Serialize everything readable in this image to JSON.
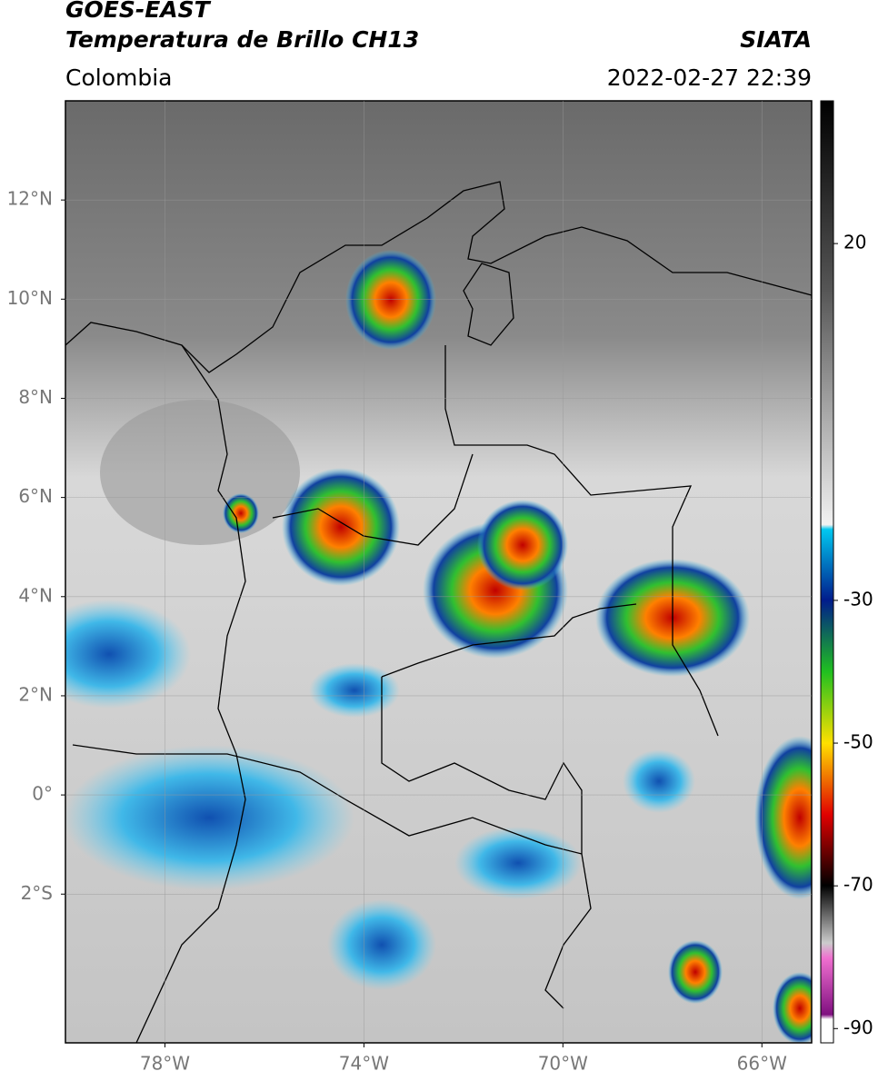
{
  "header": {
    "satellite": "GOES-EAST",
    "product": "Temperatura de Brillo CH13",
    "source": "SIATA",
    "region": "Colombia",
    "datetime": "2022-02-27 22:39"
  },
  "map": {
    "xlim": [
      -80,
      -65
    ],
    "ylim": [
      -5,
      14
    ],
    "xticks": [
      {
        "value": -78,
        "label": "78°W"
      },
      {
        "value": -74,
        "label": "74°W"
      },
      {
        "value": -70,
        "label": "70°W"
      },
      {
        "value": -66,
        "label": "66°W"
      }
    ],
    "yticks": [
      {
        "value": 12,
        "label": "12°N"
      },
      {
        "value": 10,
        "label": "10°N"
      },
      {
        "value": 8,
        "label": "8°N"
      },
      {
        "value": 6,
        "label": "6°N"
      },
      {
        "value": 4,
        "label": "4°N"
      },
      {
        "value": 2,
        "label": "2°N"
      },
      {
        "value": 0,
        "label": "0°"
      },
      {
        "value": -2,
        "label": "2°S"
      }
    ],
    "grid": true
  },
  "colorbar": {
    "lim": [
      -92,
      40
    ],
    "ticks": [
      20,
      -30,
      -50,
      -70,
      -90
    ]
  }
}
